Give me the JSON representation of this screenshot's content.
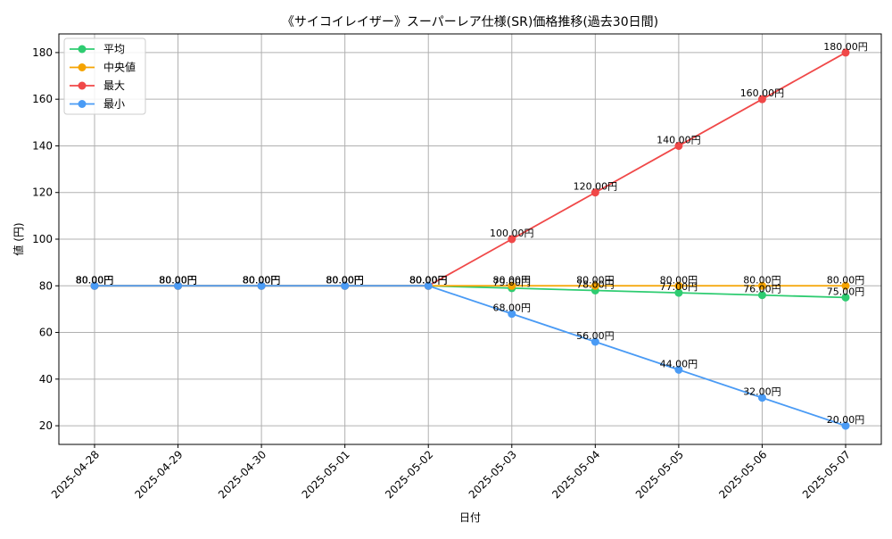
{
  "chart_data": {
    "type": "line",
    "title": "《サイコイレイザー》スーパーレア仕様(SR)価格推移(過去30日間)",
    "xlabel": "日付",
    "ylabel": "値 (円)",
    "x": [
      "2025-04-28",
      "2025-04-29",
      "2025-04-30",
      "2025-05-01",
      "2025-05-02",
      "2025-05-03",
      "2025-05-04",
      "2025-05-05",
      "2025-05-06",
      "2025-05-07"
    ],
    "ylim": [
      12.0,
      188.0
    ],
    "yticks": [
      20,
      40,
      60,
      80,
      100,
      120,
      140,
      160,
      180
    ],
    "grid": true,
    "legend_position": "top-left",
    "value_suffix": "円",
    "series": [
      {
        "name": "平均",
        "color": "#2ecc71",
        "values": [
          80,
          80,
          80,
          80,
          80,
          79,
          78,
          77,
          76,
          75
        ]
      },
      {
        "name": "中央値",
        "color": "#f5a300",
        "values": [
          80,
          80,
          80,
          80,
          80,
          80,
          80,
          80,
          80,
          80
        ]
      },
      {
        "name": "最大",
        "color": "#f04848",
        "values": [
          80,
          80,
          80,
          80,
          80,
          100,
          120,
          140,
          160,
          180
        ]
      },
      {
        "name": "最小",
        "color": "#4a9bf5",
        "values": [
          80,
          80,
          80,
          80,
          80,
          68,
          56,
          44,
          32,
          20
        ]
      }
    ]
  }
}
